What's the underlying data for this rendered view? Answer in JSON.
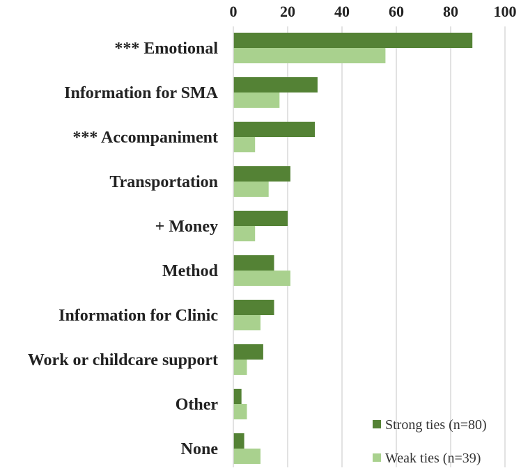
{
  "chart_data": {
    "type": "bar",
    "orientation": "horizontal",
    "title": "",
    "xlabel": "",
    "ylabel": "",
    "xlim": [
      0,
      100
    ],
    "ticks": [
      0,
      20,
      40,
      60,
      80,
      100
    ],
    "tick_labels": [
      "0",
      "20",
      "40",
      "60",
      "80",
      "100"
    ],
    "categories": [
      "*** Emotional",
      "Information for SMA",
      "*** Accompaniment",
      "Transportation",
      "+ Money",
      "Method",
      "Information for Clinic",
      "Work or childcare support",
      "Other",
      "None"
    ],
    "series": [
      {
        "name": "Strong ties (n=80)",
        "color": "#548235",
        "values": [
          88,
          31,
          30,
          21,
          20,
          15,
          15,
          11,
          3,
          4
        ]
      },
      {
        "name": "Weak ties (n=39)",
        "color": "#a9d18e",
        "values": [
          56,
          17,
          8,
          13,
          8,
          21,
          10,
          5,
          5,
          10
        ]
      }
    ],
    "grid": true,
    "axis_position": "top",
    "legend": {
      "placement": "bottom-right"
    }
  }
}
